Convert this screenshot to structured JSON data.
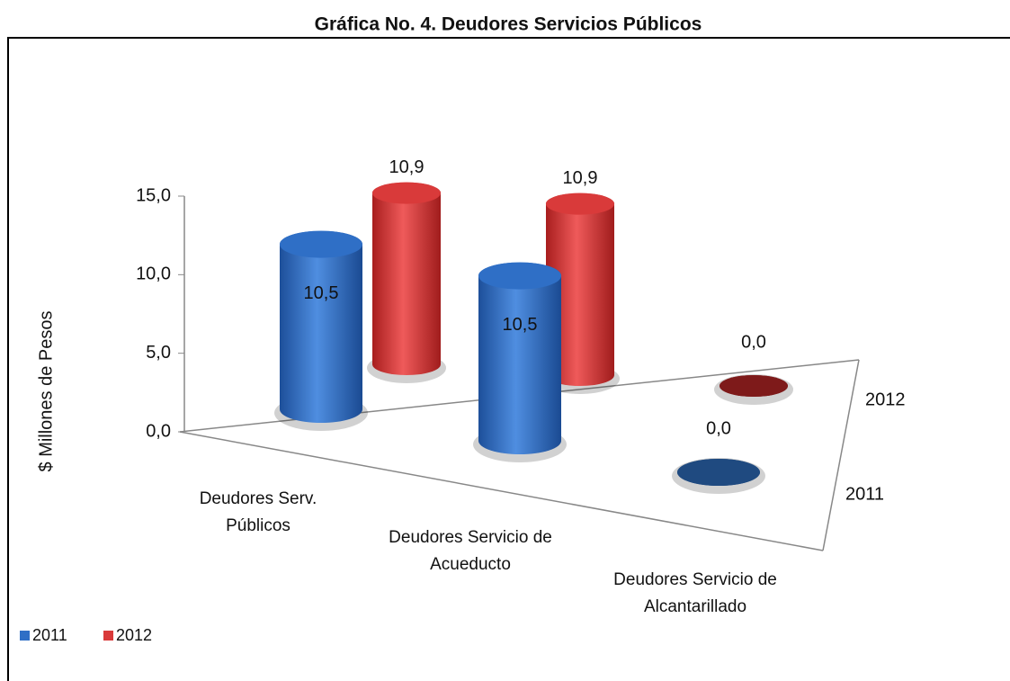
{
  "chart_data": {
    "type": "bar3d",
    "title": "Gráfica No. 4. Deudores Servicios Públicos",
    "y_label": "$ Millones de Pesos",
    "categories": [
      "Deudores Serv. Públicos",
      "Deudores Servicio de Acueducto",
      "Deudores Servicio de Alcantarillado"
    ],
    "series": [
      {
        "name": "2011",
        "color": "#2f6fc6",
        "values": [
          10.5,
          10.5,
          0.0
        ],
        "value_labels": [
          "10,5",
          "10,5",
          "0,0"
        ]
      },
      {
        "name": "2012",
        "color": "#d93a3a",
        "values": [
          10.9,
          10.9,
          0.0
        ],
        "value_labels": [
          "10,9",
          "10,9",
          "0,0"
        ]
      }
    ],
    "ylim": [
      0,
      15
    ],
    "yticks": [
      {
        "value": 0,
        "label": "0,0"
      },
      {
        "value": 5,
        "label": "5,0"
      },
      {
        "value": 10,
        "label": "10,0"
      },
      {
        "value": 15,
        "label": "15,0"
      }
    ],
    "legend": "bottom-left"
  }
}
